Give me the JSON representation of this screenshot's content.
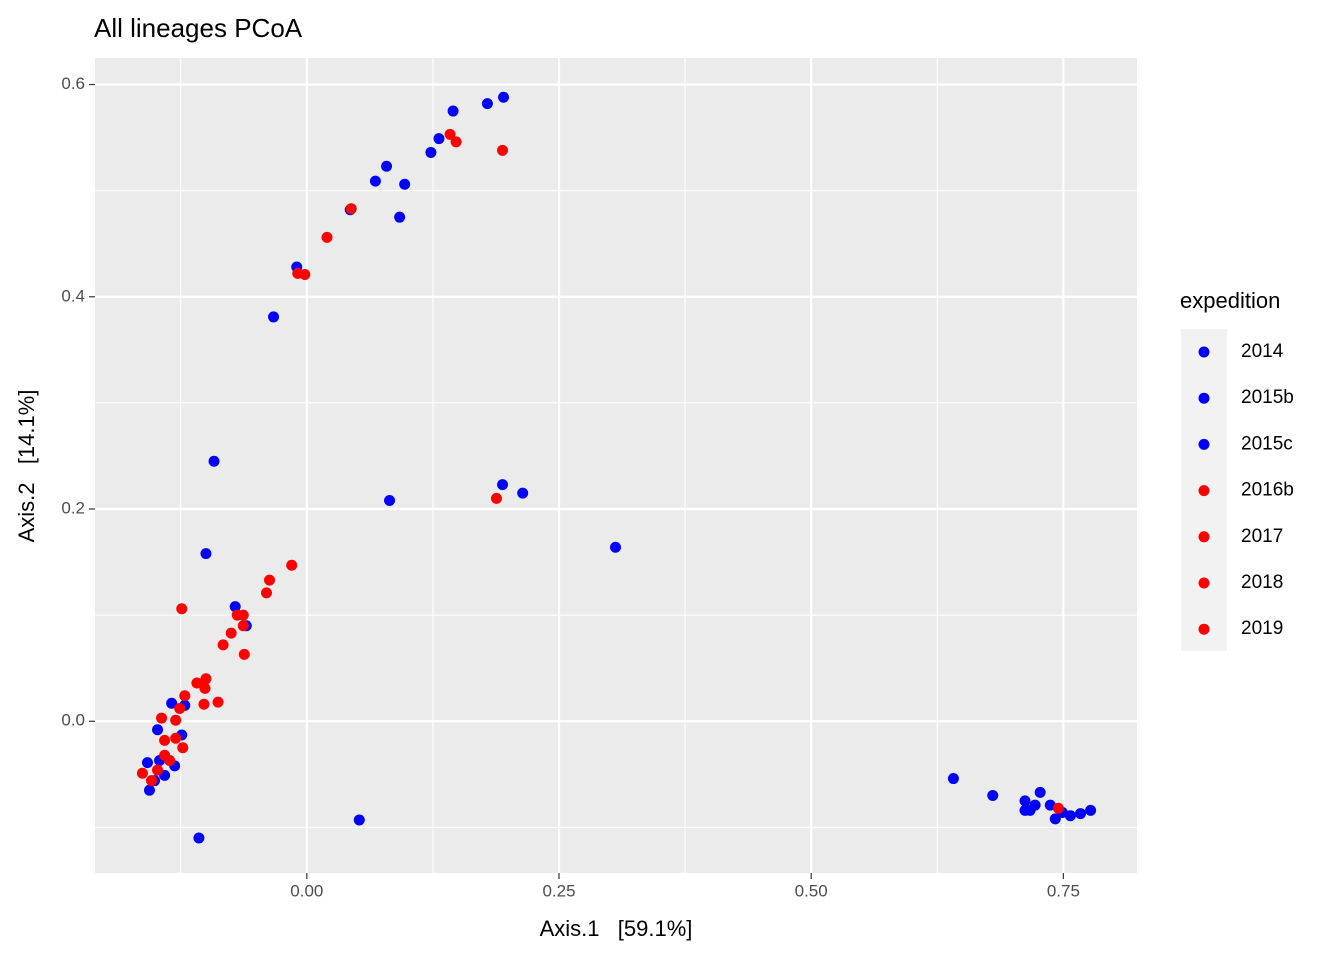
{
  "chart_data": {
    "type": "scatter",
    "title": "All lineages PCoA",
    "x_label": "Axis.1   [59.1%]",
    "y_label": "Axis.2   [14.1%]",
    "legend_title": "expedition",
    "legend": "right",
    "grid": true,
    "xlim": [
      -0.21,
      0.823
    ],
    "ylim": [
      -0.143,
      0.625
    ],
    "xticks": [
      {
        "value": 0,
        "label": "0.00"
      },
      {
        "value": 0.25,
        "label": "0.25"
      },
      {
        "value": 0.5,
        "label": "0.50"
      },
      {
        "value": 0.75,
        "label": "0.75"
      }
    ],
    "yticks": [
      {
        "value": 0,
        "label": "0.0"
      },
      {
        "value": 0.2,
        "label": "0.2"
      },
      {
        "value": 0.4,
        "label": "0.4"
      },
      {
        "value": 0.6,
        "label": "0.6"
      }
    ],
    "minor_xticks": [
      -0.125,
      0.125,
      0.375,
      0.625
    ],
    "minor_yticks": [
      -0.1,
      0.1,
      0.3,
      0.5
    ],
    "series": [
      {
        "name": "2014",
        "color": "#0000ff",
        "x": [
          0.195,
          0.179,
          0.145,
          0.131,
          0.123,
          0.079,
          0.068,
          0.097,
          0.043,
          0.092,
          -0.01,
          -0.033
        ],
        "values": [
          0.588,
          0.582,
          0.575,
          0.549,
          0.536,
          0.523,
          0.509,
          0.506,
          0.482,
          0.475,
          0.428,
          0.381
        ]
      },
      {
        "name": "2015b",
        "color": "#0000ff",
        "x": [
          -0.092,
          -0.1,
          0.082,
          0.194,
          0.214,
          0.306,
          -0.071,
          -0.06,
          0.052,
          -0.107,
          0.641,
          0.68,
          0.712,
          0.727,
          0.717,
          0.737,
          0.742,
          0.757,
          0.767,
          0.777,
          0.749,
          0.722,
          0.712
        ],
        "values": [
          0.245,
          0.158,
          0.208,
          0.223,
          0.215,
          0.164,
          0.108,
          0.09,
          -0.093,
          -0.11,
          -0.054,
          -0.07,
          -0.075,
          -0.067,
          -0.084,
          -0.079,
          -0.092,
          -0.089,
          -0.087,
          -0.084,
          -0.086,
          -0.079,
          -0.084
        ]
      },
      {
        "name": "2015c",
        "color": "#0000ff",
        "x": [
          -0.156,
          -0.151,
          -0.146,
          -0.148,
          -0.134,
          -0.124,
          -0.121,
          -0.158,
          -0.141,
          -0.131
        ],
        "values": [
          -0.065,
          -0.056,
          -0.037,
          -0.008,
          0.017,
          -0.013,
          0.015,
          -0.039,
          -0.051,
          -0.042
        ]
      },
      {
        "name": "2016b",
        "color": "#ff0000",
        "x": [
          0.142,
          0.148,
          0.194,
          0.044,
          0.02,
          -0.009,
          -0.002,
          0.188
        ],
        "values": [
          0.553,
          0.546,
          0.538,
          0.483,
          0.456,
          0.422,
          0.421,
          0.21
        ]
      },
      {
        "name": "2017",
        "color": "#ff0000",
        "x": [
          -0.015,
          -0.037,
          -0.04,
          -0.063,
          -0.069,
          -0.063,
          -0.075,
          -0.062,
          -0.083,
          -0.124
        ],
        "values": [
          0.147,
          0.133,
          0.121,
          0.1,
          0.1,
          0.09,
          0.083,
          0.063,
          0.072,
          0.106
        ]
      },
      {
        "name": "2018",
        "color": "#ff0000",
        "x": [
          -0.1,
          -0.109,
          -0.101,
          -0.102,
          -0.088,
          -0.121,
          -0.126,
          -0.144,
          -0.13
        ],
        "values": [
          0.04,
          0.036,
          0.031,
          0.016,
          0.018,
          0.024,
          0.012,
          0.003,
          0.001
        ]
      },
      {
        "name": "2019",
        "color": "#ff0000",
        "x": [
          -0.141,
          -0.123,
          -0.136,
          -0.148,
          -0.163,
          -0.154,
          -0.141,
          -0.13,
          0.745
        ],
        "values": [
          -0.018,
          -0.025,
          -0.037,
          -0.046,
          -0.049,
          -0.056,
          -0.032,
          -0.016,
          -0.082
        ]
      }
    ]
  }
}
